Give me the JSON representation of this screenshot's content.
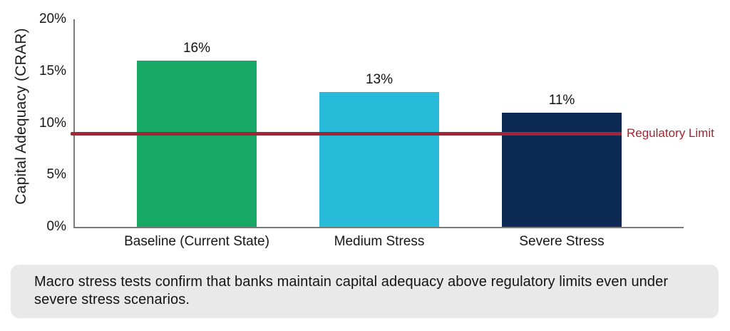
{
  "chart": {
    "y_axis_title": "Capital Adequacy (CRAR)"
  },
  "chart_data": {
    "type": "bar",
    "title": "",
    "xlabel": "",
    "ylabel": "Capital Adequacy (CRAR)",
    "categories": [
      "Baseline (Current State)",
      "Medium Stress",
      "Severe Stress"
    ],
    "values": [
      16,
      13,
      11
    ],
    "value_labels": [
      "16%",
      "13%",
      "11%"
    ],
    "bar_colors": [
      "#18a865",
      "#27bad9",
      "#0d2a55"
    ],
    "ylim": [
      0,
      20
    ],
    "yticks": [
      0,
      5,
      10,
      15,
      20
    ],
    "ytick_labels": [
      "0%",
      "5%",
      "10%",
      "15%",
      "20%"
    ],
    "grid": false,
    "legend": "none",
    "reference_line": {
      "value": 9,
      "label": "Regulatory Limit",
      "color": "#a22635",
      "label_color": "#9e2733"
    },
    "axis_color": "#7a7a7a"
  },
  "caption": {
    "text": "Macro stress tests confirm that banks maintain capital adequacy above regulatory limits even under severe stress scenarios."
  }
}
